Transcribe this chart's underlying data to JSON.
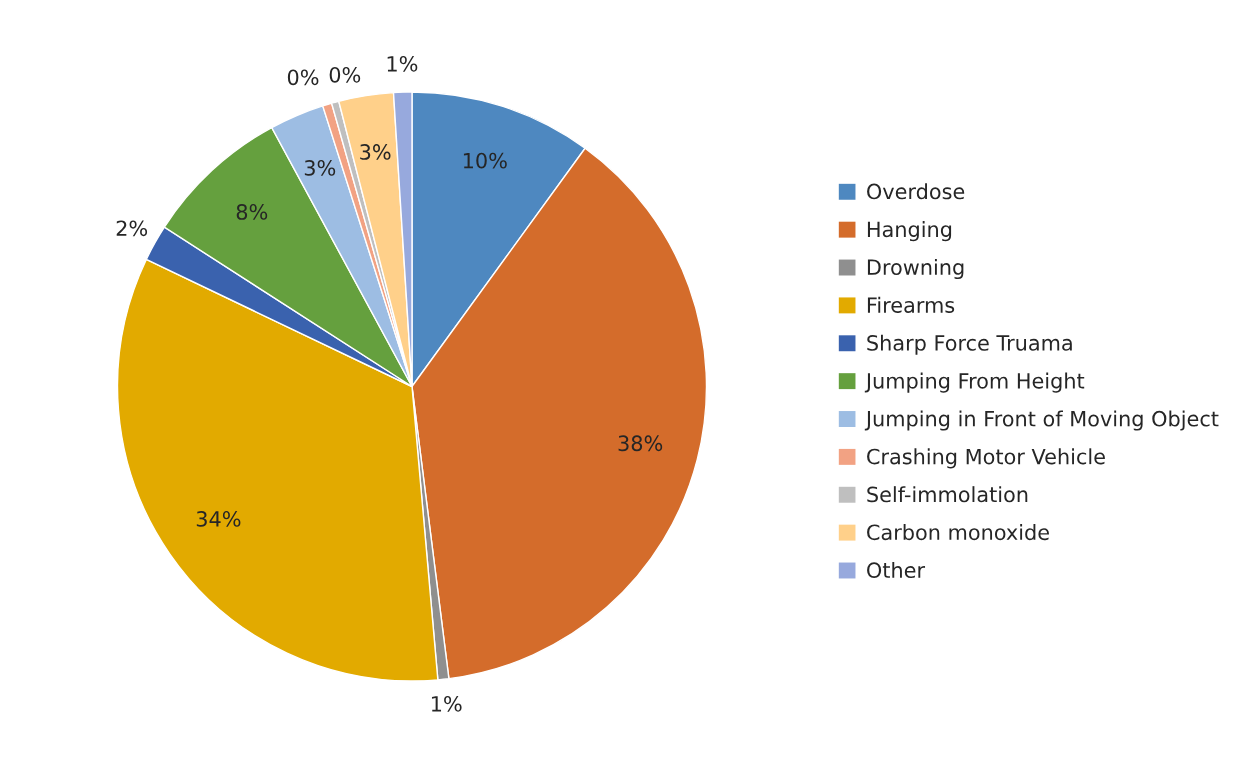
{
  "chart_data": {
    "type": "pie",
    "categories": [
      "Overdose",
      "Hanging",
      "Drowning",
      "Firearms",
      "Sharp Force Truama",
      "Jumping From Height",
      "Jumping in Front of Moving Object",
      "Crashing Motor Vehicle",
      "Self-immolation",
      "Carbon monoxide",
      "Other"
    ],
    "values": [
      10,
      38,
      0.6,
      33.5,
      2,
      8,
      3,
      0.5,
      0.4,
      3,
      1
    ],
    "value_labels": [
      "10%",
      "38%",
      "1%",
      "34%",
      "2%",
      "8%",
      "3%",
      "0%",
      "0%",
      "3%",
      "1%"
    ],
    "colors": [
      "#4e88c0",
      "#d46c2b",
      "#8f8f8f",
      "#e2aa00",
      "#3a62ae",
      "#65a03e",
      "#9dbde3",
      "#f2a283",
      "#bfbfbf",
      "#ffd08a",
      "#97a9dd"
    ],
    "legend": "right"
  }
}
